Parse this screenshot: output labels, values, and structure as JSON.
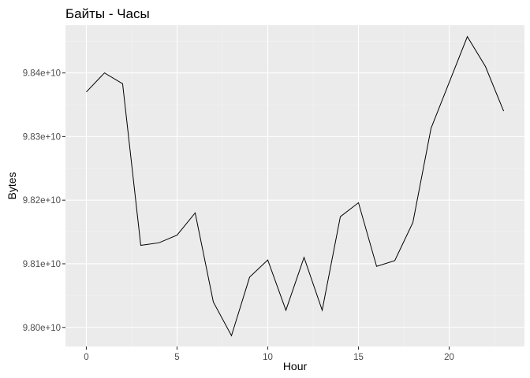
{
  "chart_data": {
    "type": "line",
    "title": "Байты - Часы",
    "xlabel": "Hour",
    "ylabel": "Bytes",
    "x": [
      0,
      1,
      2,
      3,
      4,
      5,
      6,
      7,
      8,
      9,
      10,
      11,
      12,
      13,
      14,
      15,
      16,
      17,
      18,
      19,
      20,
      21,
      22,
      23
    ],
    "series": [
      {
        "values": [
          98370000000,
          98400000000,
          98383000000,
          98129000000,
          98133000000,
          98145000000,
          98180000000,
          98040000000,
          97987000000,
          98079000000,
          98106000000,
          98027000000,
          98110000000,
          98027000000,
          98174000000,
          98196000000,
          98096000000,
          98105000000,
          98165000000,
          98313000000,
          98385000000,
          98457000000,
          98410000000,
          98340000000
        ],
        "color": "#000000"
      }
    ],
    "xlim": [
      -1.15,
      24.15
    ],
    "ylim": [
      97970000000,
      98475000000
    ],
    "xticks": [
      0,
      5,
      10,
      15,
      20
    ],
    "xtick_labels": [
      "0",
      "5",
      "10",
      "15",
      "20"
    ],
    "yticks": [
      98000000000,
      98100000000,
      98200000000,
      98300000000,
      98400000000
    ],
    "ytick_labels": [
      "9.80e+10",
      "9.81e+10",
      "9.82e+10",
      "9.83e+10",
      "9.84e+10"
    ],
    "grid": true,
    "legend": "none",
    "panel_background": "#ebebeb"
  }
}
